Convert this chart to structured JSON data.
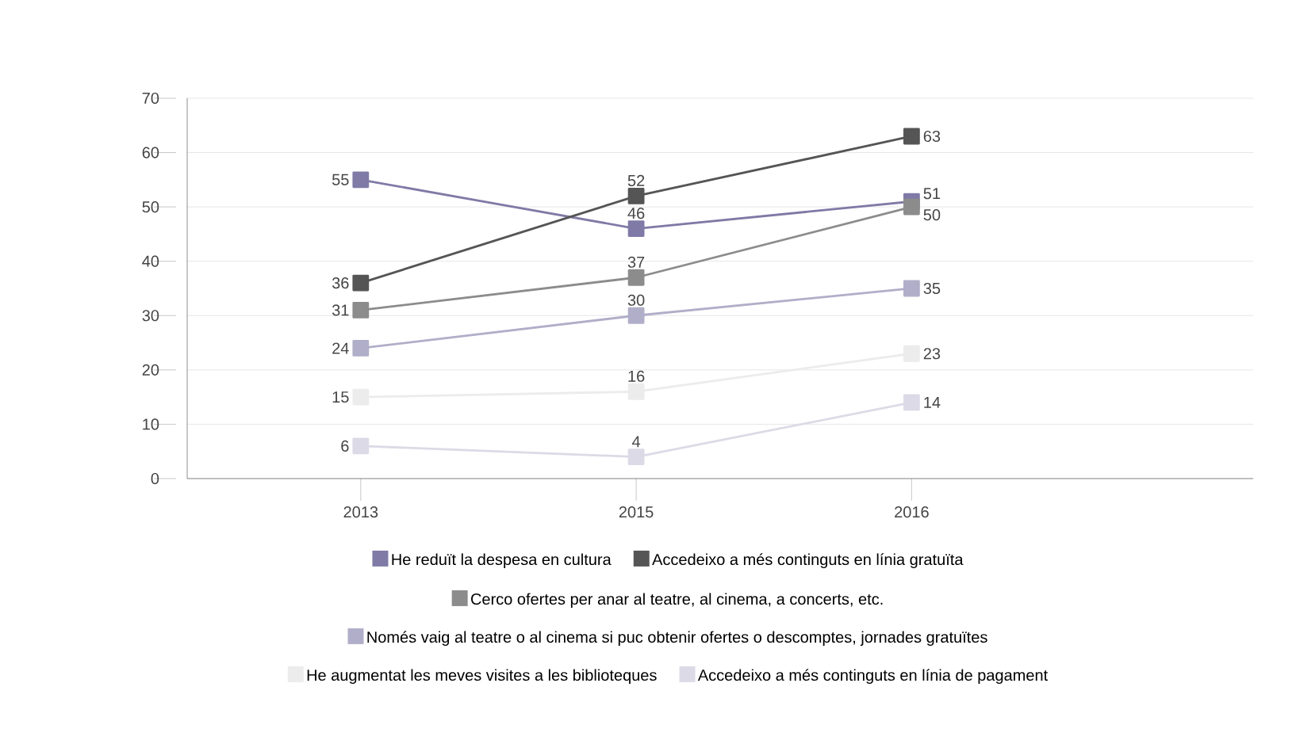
{
  "chart_data": {
    "type": "line",
    "categories": [
      "2013",
      "2015",
      "2016"
    ],
    "series": [
      {
        "name": "He reduït la despesa en cultura",
        "color": "#7f7aa6",
        "values": [
          55,
          46,
          51
        ]
      },
      {
        "name": "Accedeixo a més continguts en línia gratuïta",
        "color": "#555555",
        "values": [
          36,
          52,
          63
        ]
      },
      {
        "name": "Cerco ofertes per anar al teatre, al cinema, a concerts, etc.",
        "color": "#8c8c8c",
        "values": [
          31,
          37,
          50
        ]
      },
      {
        "name": "Només vaig al teatre o al cinema si puc obtenir ofertes o descomptes, jornades gratuïtes",
        "color": "#b0aec8",
        "values": [
          24,
          30,
          35
        ]
      },
      {
        "name": "He augmentat les meves visites a les biblioteques",
        "color": "#ececec",
        "values": [
          15,
          16,
          23
        ]
      },
      {
        "name": "Accedeixo a més continguts en línia de pagament",
        "color": "#dcdae6",
        "values": [
          6,
          4,
          14
        ]
      }
    ],
    "ylim": [
      0,
      70
    ],
    "yticks": [
      0,
      10,
      20,
      30,
      40,
      50,
      60,
      70
    ],
    "grid": "y",
    "legend": "bottom",
    "marker": "square",
    "line_style": "solid",
    "data_labels": true
  }
}
